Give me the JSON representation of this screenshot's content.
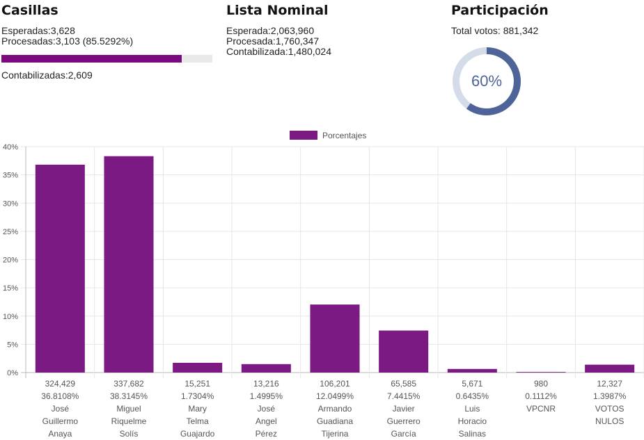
{
  "casillas": {
    "title": "Casillas",
    "esperadas": "Esperadas:3,628",
    "procesadas": "Procesadas:3,103 (85.5292%)",
    "progress_percent": 85.5292,
    "contabilizadas": "Contabilizadas:2,609"
  },
  "lista_nominal": {
    "title": "Lista Nominal",
    "esperada": "Esperada:2,063,960",
    "procesada": "Procesada:1,760,347",
    "contabilizada": "Contabilizada:1,480,024"
  },
  "participacion": {
    "title": "Participación",
    "total_votos": "Total votos: 881,342",
    "percent_label": "60%",
    "percent_value": 60
  },
  "colors": {
    "bar": "#7b1a83",
    "progress": "#7b0a7f",
    "donut_fill": "#4e6398",
    "donut_track": "#d4dbe9"
  },
  "chart_data": {
    "type": "bar",
    "legend": "Porcentajes",
    "legend_position": "top-center",
    "ylim": [
      0,
      40
    ],
    "yticks": [
      0,
      5,
      10,
      15,
      20,
      25,
      30,
      35,
      40
    ],
    "ytick_labels": [
      "0%",
      "5%",
      "10%",
      "15%",
      "20%",
      "25%",
      "30%",
      "35%",
      "40%"
    ],
    "grid": true,
    "categories": [
      {
        "votes": "324,429",
        "percent": "36.8108%",
        "name": [
          "José",
          "Guillermo",
          "Anaya"
        ]
      },
      {
        "votes": "337,682",
        "percent": "38.3145%",
        "name": [
          "Miguel",
          "Riquelme",
          "Solís"
        ]
      },
      {
        "votes": "15,251",
        "percent": "1.7304%",
        "name": [
          "Mary",
          "Telma",
          "Guajardo"
        ]
      },
      {
        "votes": "13,216",
        "percent": "1.4995%",
        "name": [
          "José",
          "Angel",
          "Pérez"
        ]
      },
      {
        "votes": "106,201",
        "percent": "12.0499%",
        "name": [
          "Armando",
          "Guadiana",
          "Tijerina"
        ]
      },
      {
        "votes": "65,585",
        "percent": "7.4415%",
        "name": [
          "Javier",
          "Guerrero",
          "García"
        ]
      },
      {
        "votes": "5,671",
        "percent": "0.6435%",
        "name": [
          "Luis",
          "Horacio",
          "Salinas"
        ]
      },
      {
        "votes": "980",
        "percent": "0.1112%",
        "name": [
          "VPCNR"
        ]
      },
      {
        "votes": "12,327",
        "percent": "1.3987%",
        "name": [
          "VOTOS",
          "NULOS"
        ]
      }
    ],
    "values": [
      36.8108,
      38.3145,
      1.7304,
      1.4995,
      12.0499,
      7.4415,
      0.6435,
      0.1112,
      1.3987
    ]
  }
}
